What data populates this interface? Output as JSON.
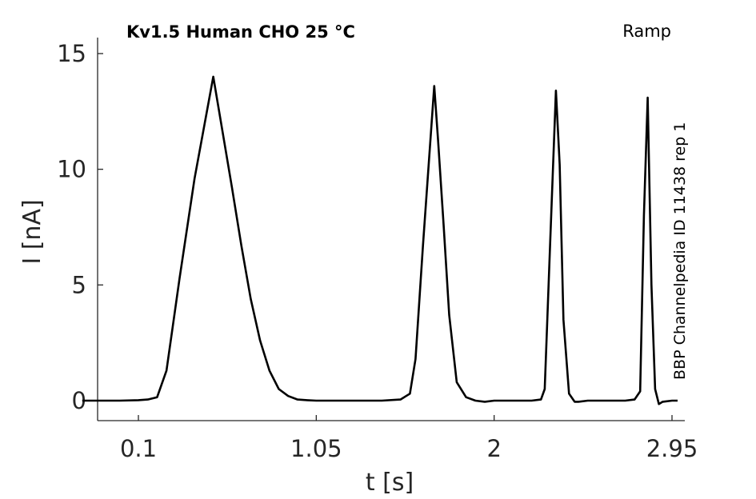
{
  "chart_data": {
    "type": "line",
    "title": "Kv1.5  Human  CHO  25 °C",
    "protocol": "Ramp",
    "side_note": "BBP Channelpedia ID 11438 rep 1",
    "xlabel": "t [s]",
    "ylabel": "I [nA]",
    "xlim": [
      -0.35,
      3.0
    ],
    "ylim": [
      -0.8,
      15.2
    ],
    "x_ticks": [
      0.1,
      1.05,
      2,
      2.95
    ],
    "x_tick_labels": [
      "0.1",
      "1.05",
      "2",
      "2.95"
    ],
    "y_ticks": [
      0,
      5,
      10,
      15
    ],
    "y_tick_labels": [
      "0",
      "5",
      "10",
      "15"
    ],
    "grid": false,
    "legend": "none",
    "series": [
      {
        "color": "#000000",
        "x": [
          -0.2,
          0.0,
          0.1,
          0.15,
          0.2,
          0.25,
          0.28,
          0.32,
          0.4,
          0.5,
          0.6,
          0.65,
          0.7,
          0.75,
          0.8,
          0.85,
          0.9,
          0.95,
          1.0,
          1.05,
          1.1,
          1.2,
          1.4,
          1.5,
          1.55,
          1.58,
          1.62,
          1.68,
          1.7,
          1.73,
          1.76,
          1.8,
          1.85,
          1.9,
          1.95,
          2.0,
          2.1,
          2.2,
          2.25,
          2.27,
          2.3,
          2.33,
          2.35,
          2.37,
          2.4,
          2.43,
          2.45,
          2.5,
          2.6,
          2.7,
          2.75,
          2.78,
          2.8,
          2.82,
          2.84,
          2.86,
          2.88,
          2.9,
          2.95,
          2.98
        ],
        "y": [
          0,
          0,
          0.02,
          0.05,
          0.15,
          1.3,
          3.0,
          5.3,
          9.6,
          14.0,
          9.2,
          6.7,
          4.4,
          2.6,
          1.3,
          0.5,
          0.2,
          0.05,
          0.02,
          0.0,
          0.0,
          0.0,
          0.0,
          0.05,
          0.3,
          1.8,
          6.7,
          13.6,
          11.3,
          7.6,
          3.7,
          0.8,
          0.15,
          0.0,
          -0.05,
          0.0,
          0.0,
          0.0,
          0.05,
          0.5,
          7.0,
          13.4,
          10.2,
          3.5,
          0.3,
          -0.05,
          -0.05,
          0.0,
          0.0,
          0.0,
          0.05,
          0.4,
          8.0,
          13.1,
          5.0,
          0.5,
          -0.15,
          -0.05,
          0.0,
          0.0
        ]
      }
    ]
  }
}
